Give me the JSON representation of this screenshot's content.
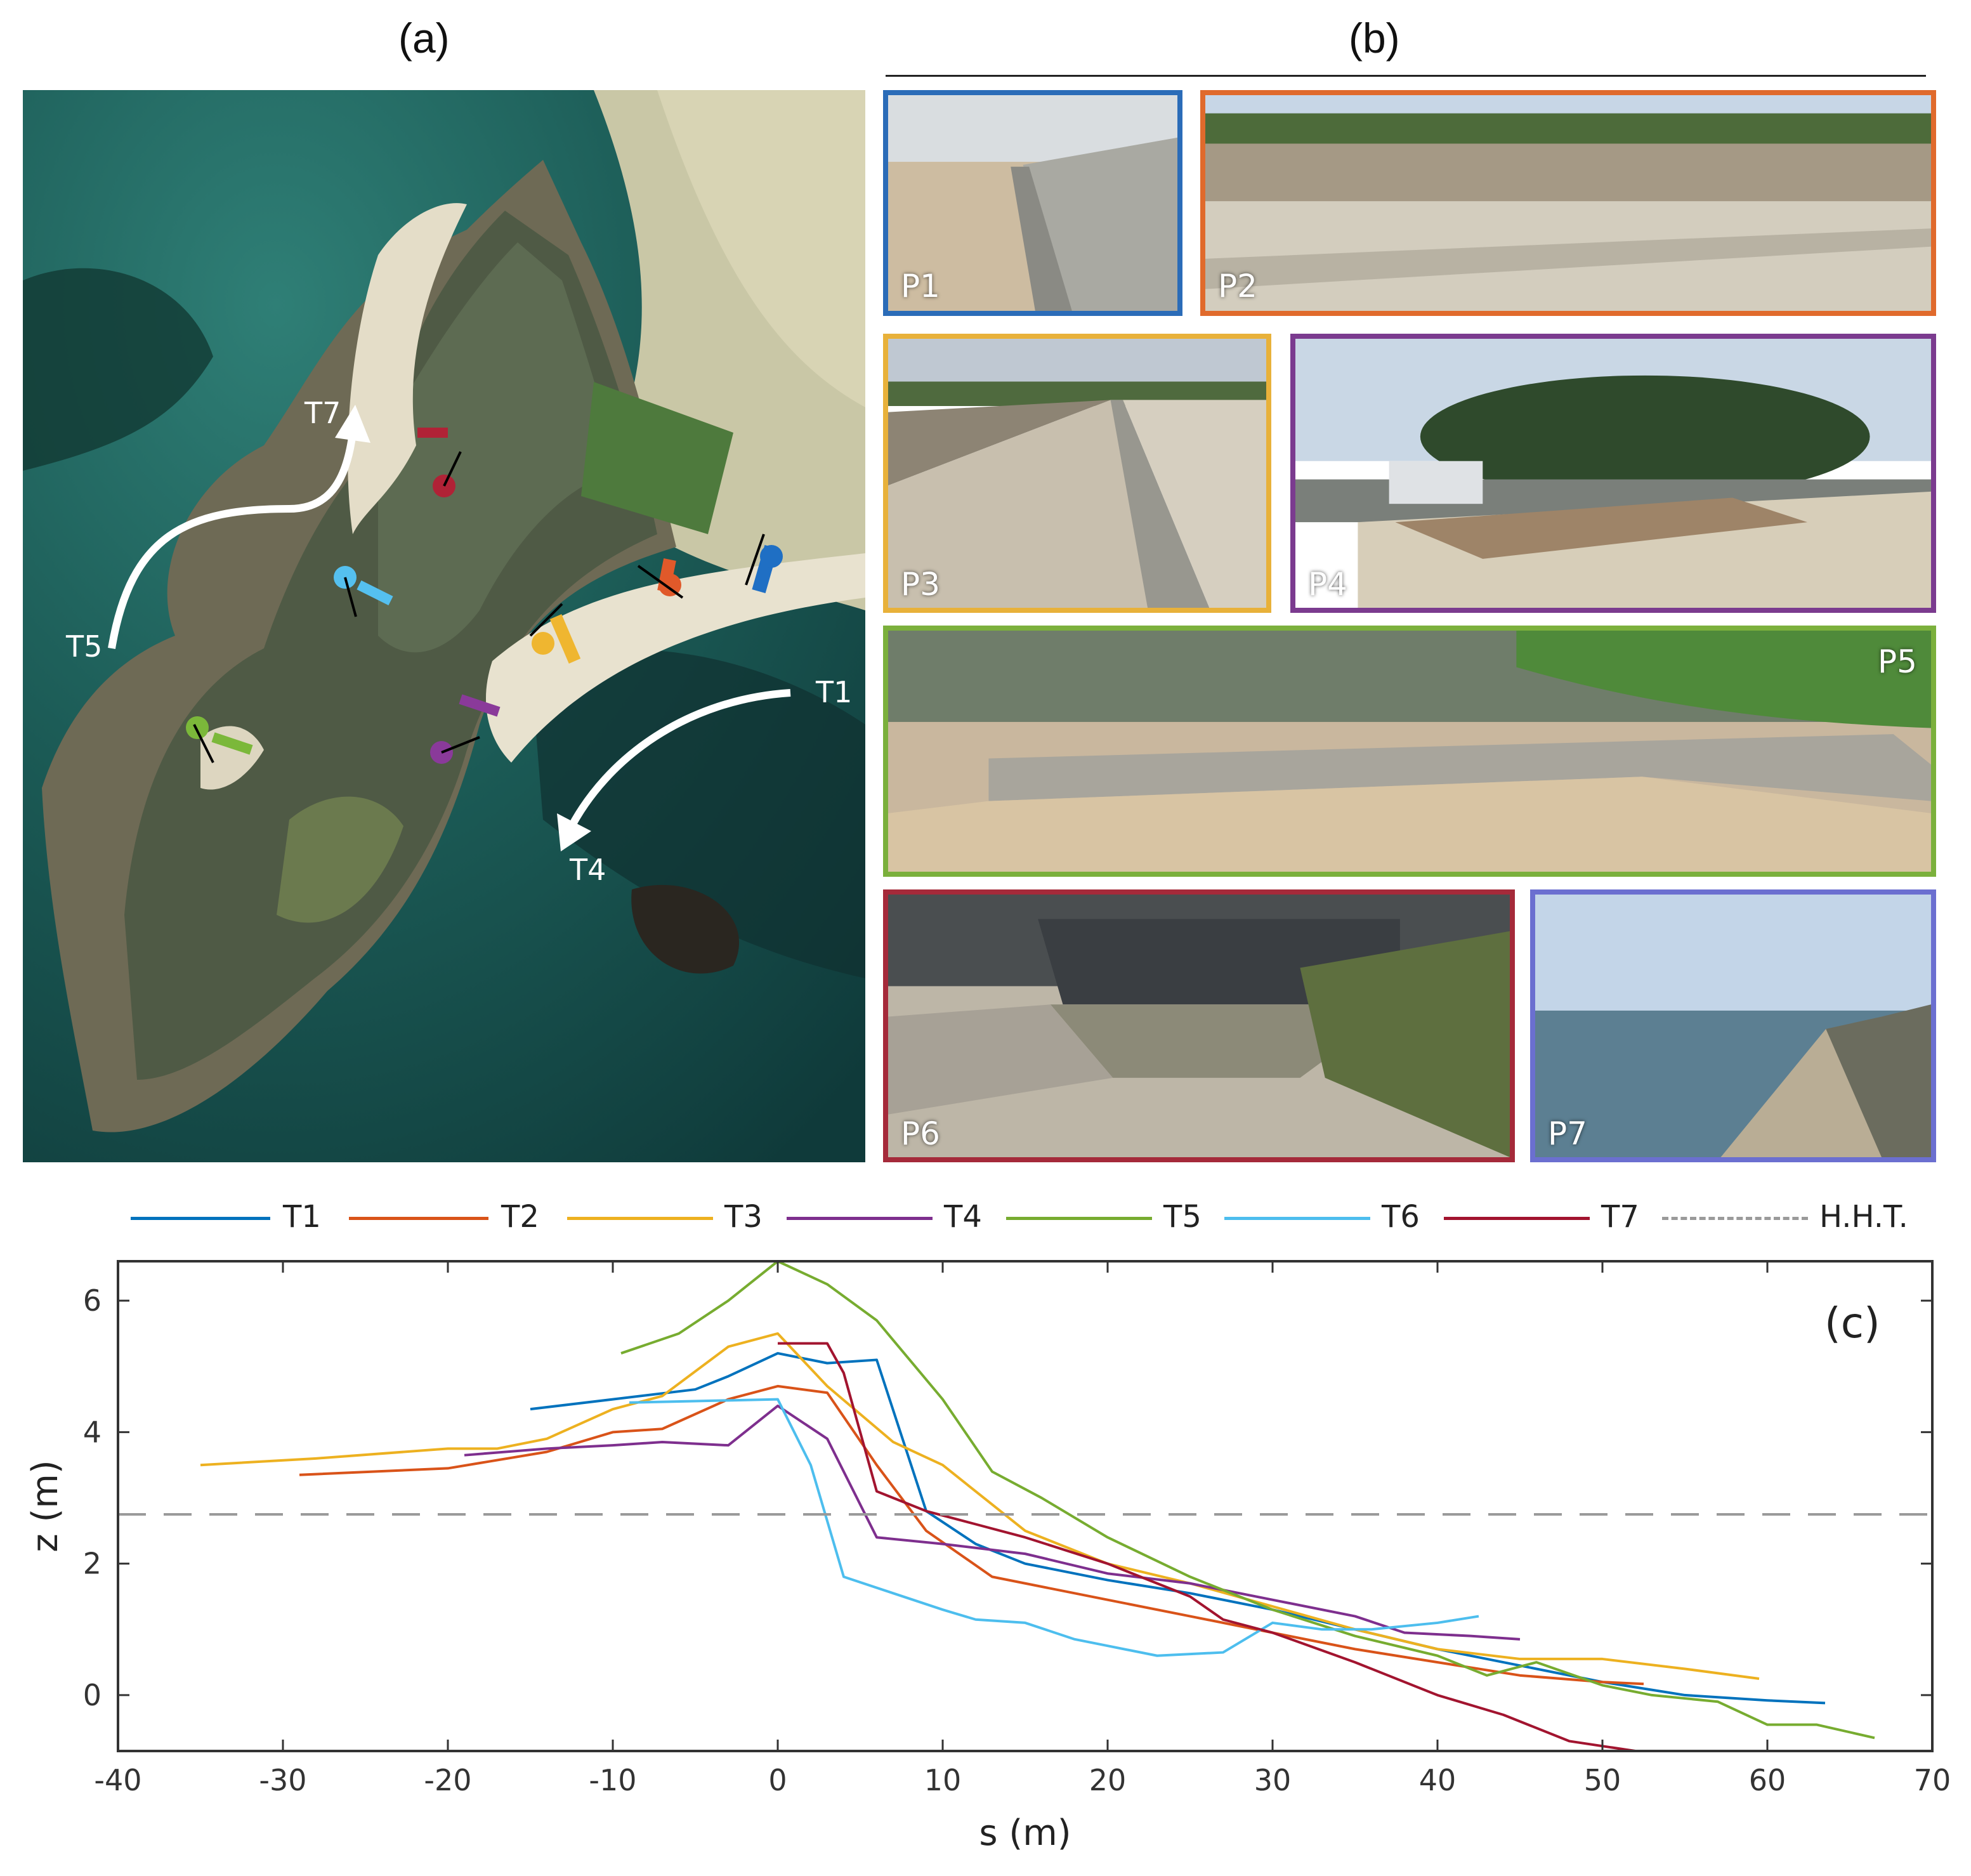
{
  "panels": {
    "a_label": "(a)",
    "b_label": "(b)",
    "c_label": "(c)"
  },
  "map": {
    "labels": {
      "t1": "T1",
      "t4": "T4",
      "t5": "T5",
      "t7": "T7"
    }
  },
  "photos": [
    {
      "label": "P1",
      "border": "#2b6cb8"
    },
    {
      "label": "P2",
      "border": "#e06a2c"
    },
    {
      "label": "P3",
      "border": "#e8b13a"
    },
    {
      "label": "P4",
      "border": "#7b3b8f"
    },
    {
      "label": "P5",
      "border": "#7bb03c"
    },
    {
      "label": "P6",
      "border": "#a52a3a"
    },
    {
      "label": "P7",
      "border": "#6b6fd0"
    }
  ],
  "legend": [
    {
      "name": "T1",
      "color": "#0072bd"
    },
    {
      "name": "T2",
      "color": "#d95319"
    },
    {
      "name": "T3",
      "color": "#edb120"
    },
    {
      "name": "T4",
      "color": "#7e2f8e"
    },
    {
      "name": "T5",
      "color": "#77ac30"
    },
    {
      "name": "T6",
      "color": "#4dbeee"
    },
    {
      "name": "T7",
      "color": "#a2142f"
    },
    {
      "name": "H.H.T.",
      "color": "#9a9a9a"
    }
  ],
  "chart_data": {
    "type": "line",
    "xlabel": "s (m)",
    "ylabel": "z (m)",
    "xlim": [
      -40,
      70
    ],
    "ylim": [
      -0.85,
      6.6
    ],
    "xticks": [
      -40,
      -30,
      -20,
      -10,
      0,
      10,
      20,
      30,
      40,
      50,
      60,
      70
    ],
    "yticks": [
      0,
      2,
      4,
      6
    ],
    "grid": false,
    "legend_position": "top",
    "hht_level": 2.75,
    "series": [
      {
        "name": "T1",
        "color": "#0072bd",
        "x": [
          -15,
          -10,
          -5,
          -3,
          0,
          3,
          6,
          9,
          12,
          15,
          20,
          25,
          30,
          35,
          40,
          45,
          50,
          55,
          60,
          63.5
        ],
        "y": [
          4.35,
          4.5,
          4.65,
          4.85,
          5.2,
          5.05,
          5.1,
          2.8,
          2.3,
          2.0,
          1.75,
          1.55,
          1.3,
          1.0,
          0.7,
          0.45,
          0.2,
          0.0,
          -0.08,
          -0.12
        ]
      },
      {
        "name": "T2",
        "color": "#d95319",
        "x": [
          -29,
          -20,
          -14,
          -10,
          -7,
          -3,
          0,
          3,
          6,
          9,
          13,
          20,
          25,
          30,
          35,
          40,
          45,
          50,
          52.5
        ],
        "y": [
          3.35,
          3.45,
          3.7,
          4.0,
          4.05,
          4.5,
          4.7,
          4.6,
          3.5,
          2.5,
          1.8,
          1.45,
          1.2,
          0.95,
          0.7,
          0.5,
          0.3,
          0.2,
          0.17
        ]
      },
      {
        "name": "T3",
        "color": "#edb120",
        "x": [
          -35,
          -28,
          -20,
          -17,
          -14,
          -10,
          -7,
          -3,
          0,
          3,
          7,
          10,
          15,
          20,
          25,
          30,
          35,
          40,
          45,
          50,
          55,
          59.5
        ],
        "y": [
          3.5,
          3.6,
          3.75,
          3.75,
          3.9,
          4.35,
          4.55,
          5.3,
          5.5,
          4.7,
          3.85,
          3.5,
          2.5,
          2.0,
          1.7,
          1.35,
          1.0,
          0.7,
          0.55,
          0.55,
          0.4,
          0.25
        ]
      },
      {
        "name": "T4",
        "color": "#7e2f8e",
        "x": [
          -19,
          -14,
          -10,
          -7,
          -3,
          0,
          3,
          6,
          10,
          15,
          20,
          25,
          30,
          35,
          38,
          42,
          45
        ],
        "y": [
          3.65,
          3.75,
          3.8,
          3.85,
          3.8,
          4.4,
          3.9,
          2.4,
          2.3,
          2.15,
          1.85,
          1.7,
          1.45,
          1.2,
          0.95,
          0.9,
          0.85
        ]
      },
      {
        "name": "T5",
        "color": "#77ac30",
        "x": [
          -9.5,
          -6,
          -3,
          0,
          3,
          6,
          10,
          13,
          16,
          20,
          25,
          30,
          35,
          40,
          43,
          46,
          50,
          53,
          57,
          60,
          63,
          66.5
        ],
        "y": [
          5.2,
          5.5,
          6.0,
          6.6,
          6.25,
          5.7,
          4.5,
          3.4,
          3.0,
          2.4,
          1.8,
          1.3,
          0.9,
          0.6,
          0.3,
          0.5,
          0.15,
          0.0,
          -0.1,
          -0.45,
          -0.45,
          -0.65
        ]
      },
      {
        "name": "T6",
        "color": "#4dbeee",
        "x": [
          -9,
          0,
          2,
          4,
          7,
          10,
          12,
          15,
          18,
          20,
          23,
          27,
          30,
          33,
          36,
          40,
          42.5
        ],
        "y": [
          4.45,
          4.5,
          3.5,
          1.8,
          1.55,
          1.3,
          1.15,
          1.1,
          0.85,
          0.75,
          0.6,
          0.65,
          1.1,
          1.0,
          1.0,
          1.1,
          1.2
        ]
      },
      {
        "name": "T7",
        "color": "#a2142f",
        "x": [
          0,
          3,
          4,
          6,
          9,
          12,
          15,
          20,
          25,
          27,
          30,
          35,
          40,
          44,
          48,
          52
        ],
        "y": [
          5.35,
          5.35,
          4.9,
          3.1,
          2.8,
          2.6,
          2.4,
          2.0,
          1.5,
          1.15,
          0.95,
          0.5,
          0.0,
          -0.3,
          -0.7,
          -0.85
        ]
      }
    ]
  }
}
